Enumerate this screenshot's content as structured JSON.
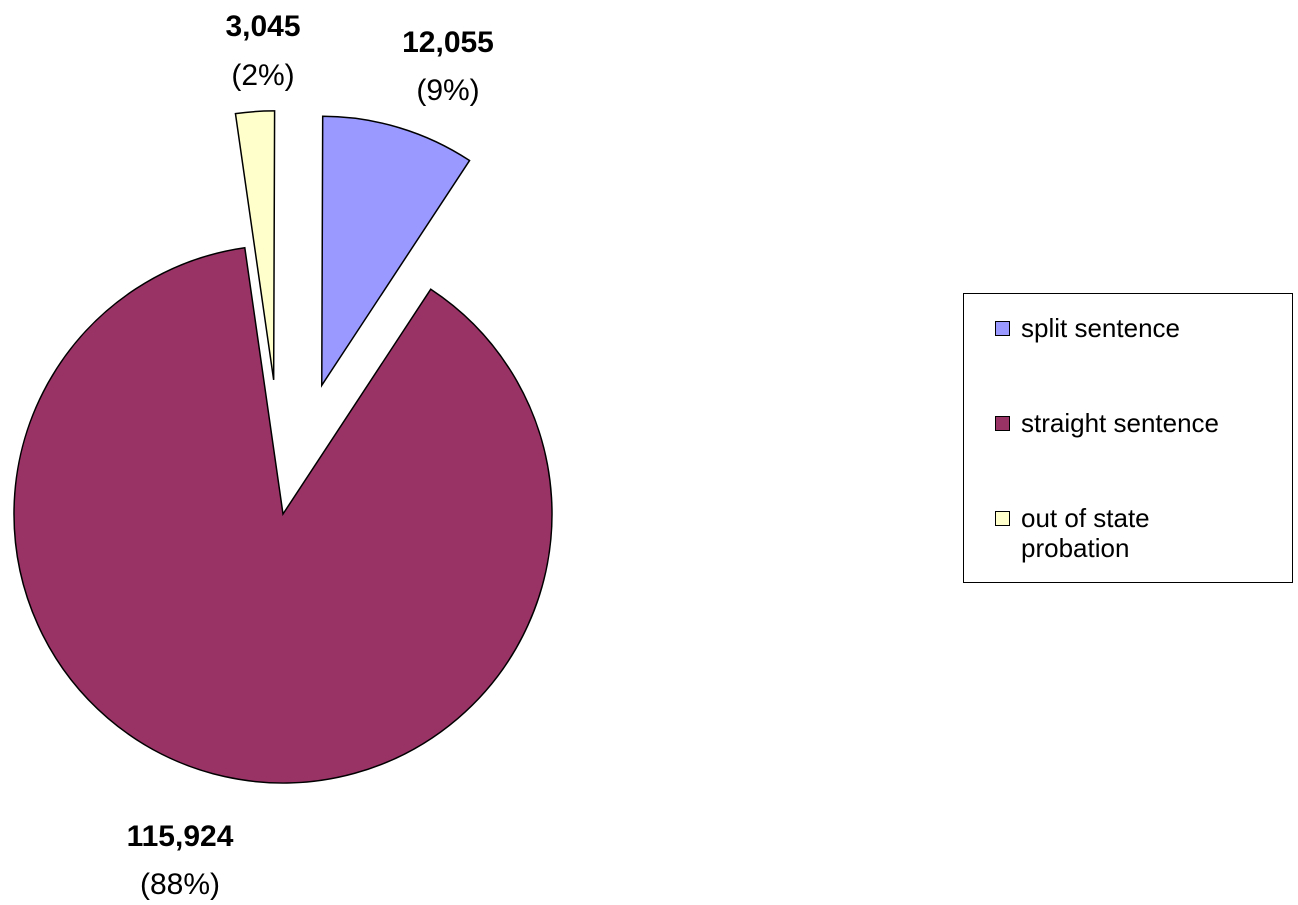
{
  "chart_data": {
    "type": "pie",
    "slices": [
      {
        "name": "split sentence",
        "value": 12055,
        "value_label": "12,055",
        "pct_label": "(9%)",
        "color": "#9999ff",
        "exploded": true
      },
      {
        "name": "straight sentence",
        "value": 115924,
        "value_label": "115,924",
        "pct_label": "(88%)",
        "color": "#993366",
        "exploded": false
      },
      {
        "name": "out of state probation",
        "value": 3045,
        "value_label": "3,045",
        "pct_label": "(2%)",
        "color": "#ffffcc",
        "exploded": true
      }
    ],
    "legend_position": "right"
  }
}
